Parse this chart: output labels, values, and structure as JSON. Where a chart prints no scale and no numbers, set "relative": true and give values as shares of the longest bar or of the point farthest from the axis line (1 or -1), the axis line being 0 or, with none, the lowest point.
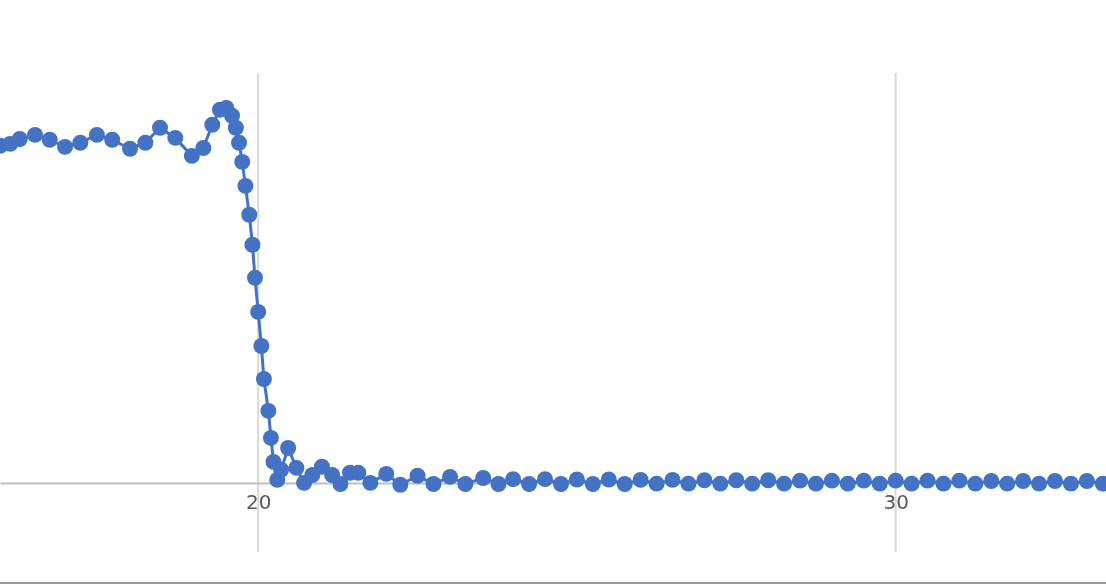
{
  "chart_data": {
    "type": "line",
    "relative": true,
    "xlim": [
      15.95,
      33.3
    ],
    "xticks": [
      20,
      30
    ],
    "grid": "x",
    "marker": "circle",
    "line_style": "solid",
    "series": [
      {
        "color": "#4472c4",
        "x": [
          15.95,
          16.11,
          16.26,
          16.5,
          16.73,
          16.97,
          17.21,
          17.47,
          17.71,
          17.99,
          18.23,
          18.46,
          18.7,
          18.96,
          19.14,
          19.28,
          19.4,
          19.5,
          19.59,
          19.65,
          19.7,
          19.75,
          19.8,
          19.86,
          19.91,
          19.95,
          20.0,
          20.05,
          20.09,
          20.16,
          20.2,
          20.24,
          20.3,
          20.36,
          20.47,
          20.6,
          20.72,
          20.85,
          21.0,
          21.16,
          21.29,
          21.44,
          21.57,
          21.76,
          22.01,
          22.23,
          22.5,
          22.75,
          23.01,
          23.25,
          23.53,
          23.77,
          24.0,
          24.25,
          24.5,
          24.75,
          25.0,
          25.25,
          25.5,
          25.75,
          26.0,
          26.25,
          26.5,
          26.75,
          27.0,
          27.25,
          27.5,
          27.75,
          28.0,
          28.25,
          28.5,
          28.75,
          29.0,
          29.25,
          29.5,
          29.75,
          30.0,
          30.25,
          30.5,
          30.75,
          31.0,
          31.25,
          31.5,
          31.75,
          32.0,
          32.25,
          32.5,
          32.75,
          33.0,
          33.25
        ],
        "values": [
          0.899,
          0.904,
          0.917,
          0.928,
          0.915,
          0.896,
          0.907,
          0.928,
          0.915,
          0.891,
          0.907,
          0.947,
          0.92,
          0.872,
          0.893,
          0.955,
          0.995,
          1.0,
          0.979,
          0.947,
          0.907,
          0.856,
          0.792,
          0.715,
          0.635,
          0.547,
          0.456,
          0.365,
          0.277,
          0.192,
          0.12,
          0.056,
          0.008,
          0.035,
          0.093,
          0.04,
          0,
          0.021,
          0.043,
          0.021,
          -0.003,
          0.027,
          0.027,
          0,
          0.024,
          -0.005,
          0.019,
          -0.003,
          0.016,
          -0.003,
          0.013,
          -0.003,
          0.01,
          -0.003,
          0.01,
          -0.003,
          0.009,
          -0.003,
          0.009,
          -0.003,
          0.008,
          -0.002,
          0.008,
          -0.002,
          0.007,
          -0.002,
          0.007,
          -0.002,
          0.007,
          -0.002,
          0.006,
          -0.002,
          0.006,
          -0.002,
          0.006,
          -0.002,
          0.006,
          -0.002,
          0.006,
          -0.002,
          0.006,
          -0.002,
          0.005,
          -0.002,
          0.005,
          -0.002,
          0.005,
          -0.002,
          0.005,
          -0.002
        ]
      }
    ]
  }
}
